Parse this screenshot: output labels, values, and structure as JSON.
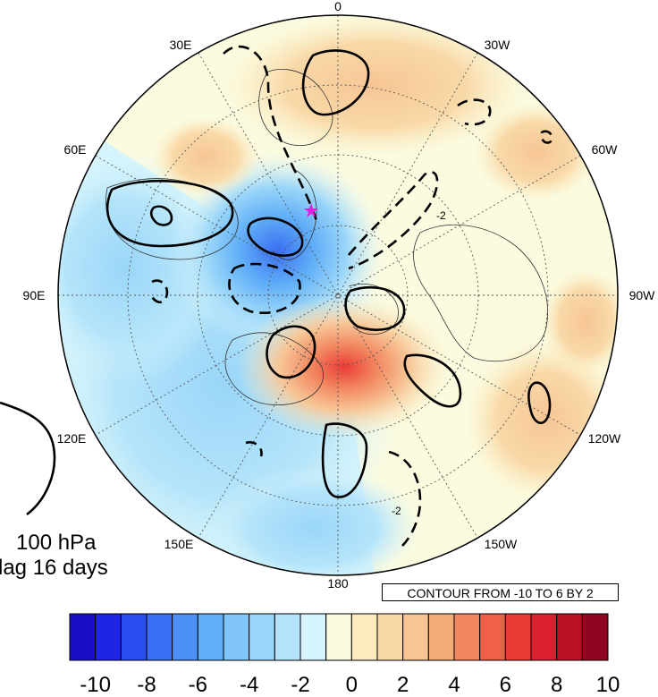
{
  "map": {
    "level": "100 hPa",
    "lag": "lag 16 days",
    "contour_note": "CONTOUR FROM -10 TO 6 BY 2",
    "contour_label": "-2",
    "longitude_labels": [
      "0",
      "30W",
      "60W",
      "90W",
      "120W",
      "150W",
      "180",
      "150E",
      "120E",
      "90E",
      "60E",
      "30E"
    ],
    "marker_color": "#e020e0"
  },
  "colorbar": {
    "tick_labels": [
      "-10",
      "-8",
      "-6",
      "-4",
      "-2",
      "0",
      "2",
      "4",
      "6",
      "8",
      "10"
    ],
    "colors": [
      "#1a0fc8",
      "#1f24e6",
      "#2a4df0",
      "#3a6ef2",
      "#4d90f5",
      "#60aef7",
      "#80c6f8",
      "#9ad6f9",
      "#b4e4fa",
      "#d6f4fb",
      "#fbfbe0",
      "#fbecc0",
      "#f9d9a8",
      "#f7c595",
      "#f5aa7a",
      "#f28660",
      "#ef6048",
      "#ea3c36",
      "#db1f2e",
      "#bb0f25",
      "#8f0621"
    ]
  }
}
